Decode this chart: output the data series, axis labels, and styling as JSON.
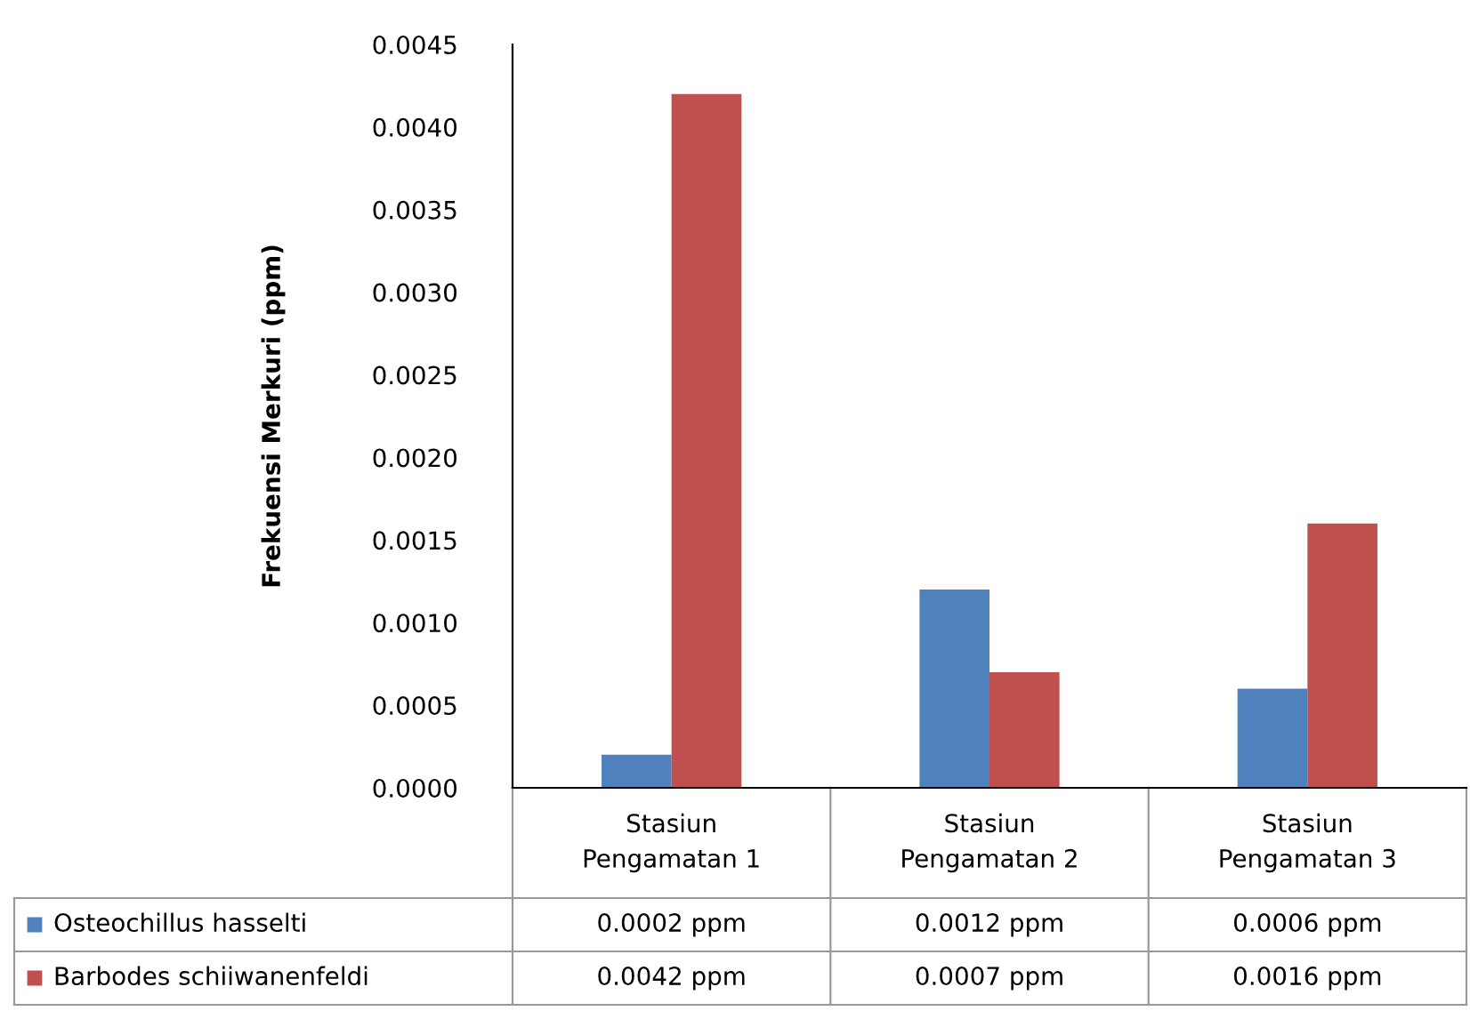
{
  "chart_data": {
    "type": "bar",
    "ylabel": "Frekuensi Merkuri (ppm)",
    "categories": [
      "Stasiun\nPengamatan 1",
      "Stasiun\nPengamatan 2",
      "Stasiun\nPengamatan 3"
    ],
    "series": [
      {
        "name": "Osteochillus hasselti",
        "color": "#4f81bd",
        "values": [
          0.0002,
          0.0012,
          0.0006
        ],
        "value_labels": [
          "0.0002 ppm",
          "0.0012 ppm",
          "0.0006 ppm"
        ]
      },
      {
        "name": "Barbodes schiiwanenfeldi",
        "color": "#c0504d",
        "values": [
          0.0042,
          0.0007,
          0.0016
        ],
        "value_labels": [
          "0.0042 ppm",
          "0.0007 ppm",
          "0.0016 ppm"
        ]
      }
    ],
    "ylim": [
      0,
      0.0045
    ],
    "yticks": [
      {
        "value": 0,
        "label": "0.0000"
      },
      {
        "value": 0.0005,
        "label": "0.0005"
      },
      {
        "value": 0.001,
        "label": "0.0010"
      },
      {
        "value": 0.0015,
        "label": "0.0015"
      },
      {
        "value": 0.002,
        "label": "0.0020"
      },
      {
        "value": 0.0025,
        "label": "0.0025"
      },
      {
        "value": 0.003,
        "label": "0.0030"
      },
      {
        "value": 0.0035,
        "label": "0.0035"
      },
      {
        "value": 0.004,
        "label": "0.0040"
      },
      {
        "value": 0.0045,
        "label": "0.0045"
      }
    ],
    "grid": false,
    "legend": "bottom"
  }
}
